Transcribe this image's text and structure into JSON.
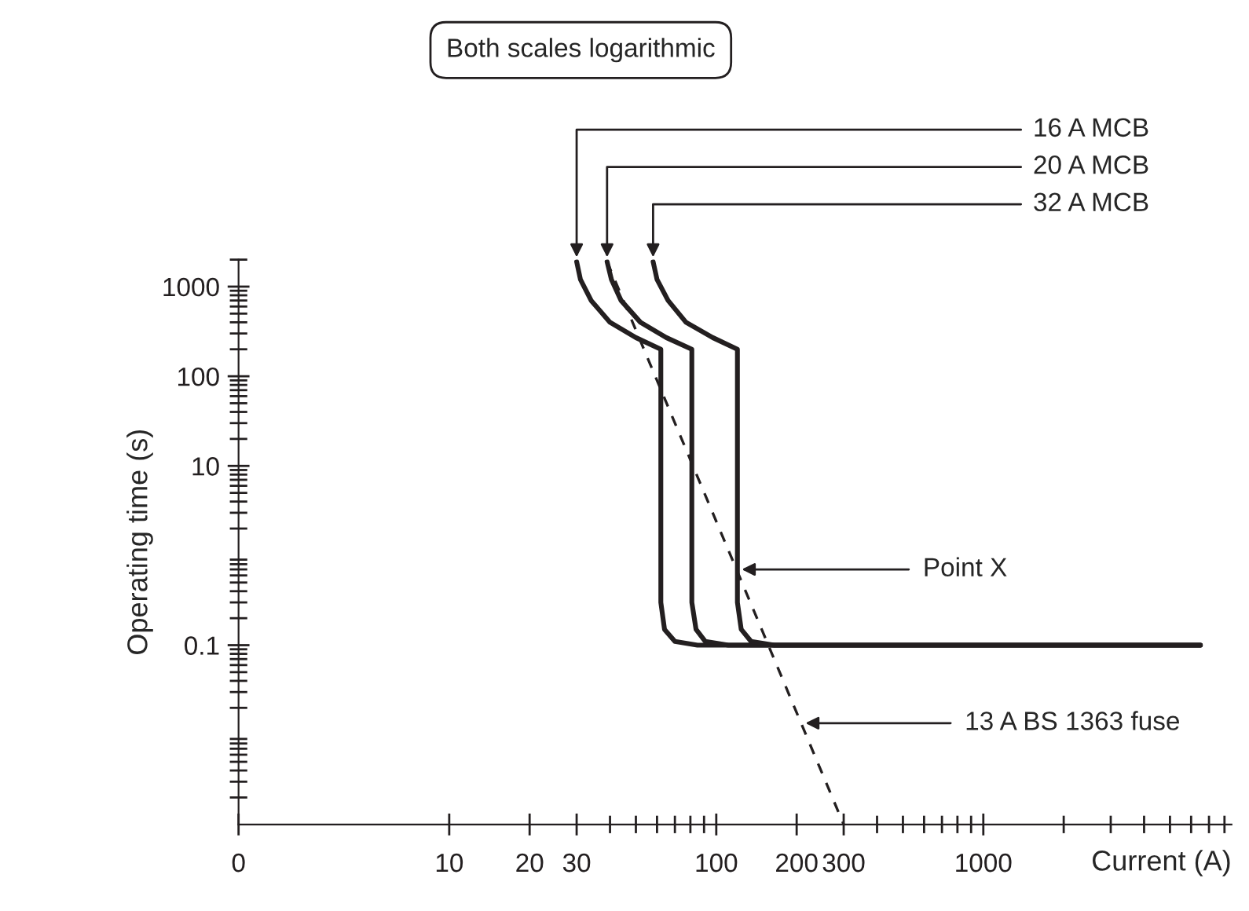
{
  "chart_data": {
    "type": "line",
    "title": "Both scales logarithmic",
    "xlabel": "Current (A)",
    "ylabel": "Operating time (s)",
    "log": "xy",
    "grid": false,
    "xlim": [
      0,
      8500
    ],
    "ylim": [
      0.001,
      2000
    ],
    "xticks": [
      0,
      10,
      20,
      30,
      100,
      200,
      300,
      1000
    ],
    "yticks": [
      0.1,
      10,
      100,
      1000
    ],
    "series": [
      {
        "name": "16 A MCB",
        "color": "#231f20",
        "line_style": "solid",
        "x": [
          30,
          31,
          34,
          40,
          50,
          62,
          62,
          62,
          62,
          64,
          70,
          85,
          6500
        ],
        "values": [
          1900,
          1200,
          700,
          400,
          270,
          200,
          10,
          1,
          0.3,
          0.15,
          0.11,
          0.1,
          0.1
        ]
      },
      {
        "name": "20 A MCB",
        "color": "#231f20",
        "line_style": "solid",
        "x": [
          39,
          40.5,
          44,
          52,
          65,
          81,
          81,
          81,
          81,
          84,
          91,
          111,
          6500
        ],
        "values": [
          1900,
          1200,
          700,
          400,
          270,
          200,
          10,
          1,
          0.3,
          0.15,
          0.11,
          0.1,
          0.1
        ]
      },
      {
        "name": "32 A MCB",
        "color": "#231f20",
        "line_style": "solid",
        "x": [
          58,
          60,
          66,
          77,
          97,
          120,
          120,
          120,
          120,
          124,
          135,
          165,
          6500
        ],
        "values": [
          1900,
          1200,
          700,
          400,
          270,
          200,
          10,
          1,
          0.3,
          0.15,
          0.11,
          0.1,
          0.1
        ]
      },
      {
        "name": "13 A BS 1363 fuse",
        "color": "#231f20",
        "line_style": "dashed",
        "x": [
          39,
          300
        ],
        "values": [
          1900,
          0.001
        ]
      }
    ],
    "annotations": [
      {
        "text": "Point X",
        "x": 120,
        "y": 0.7
      }
    ]
  }
}
